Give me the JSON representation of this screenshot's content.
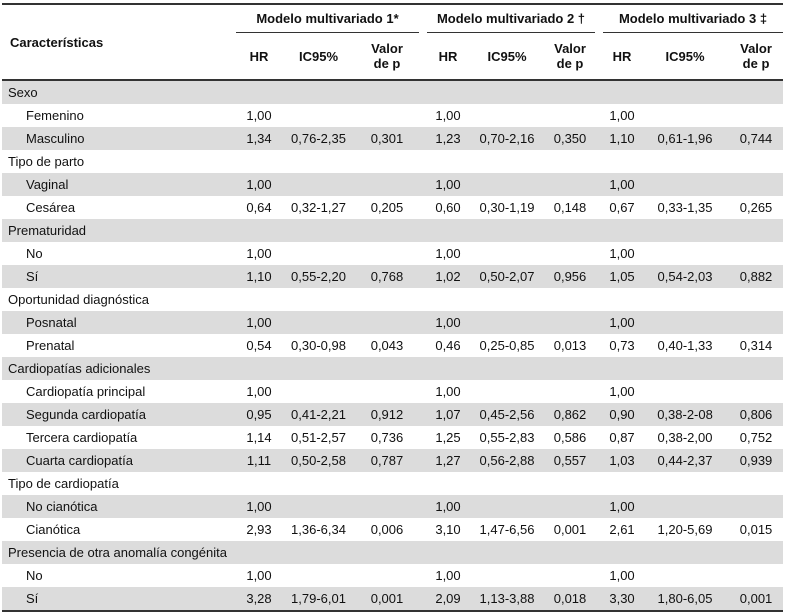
{
  "headers": {
    "characteristics": "Características",
    "groups": [
      "Modelo multivariado 1*",
      "Modelo multivariado 2 †",
      "Modelo multivariado 3 ‡"
    ],
    "hr": "HR",
    "ic": "IC95%",
    "p_line1": "Valor",
    "p_line2": "de p"
  },
  "rows": [
    {
      "type": "cat",
      "shade": true,
      "label": "Sexo"
    },
    {
      "type": "sub",
      "shade": false,
      "label": "Femenino",
      "m1": [
        "1,00",
        "",
        ""
      ],
      "m2": [
        "1,00",
        "",
        ""
      ],
      "m3": [
        "1,00",
        "",
        ""
      ]
    },
    {
      "type": "sub",
      "shade": true,
      "label": "Masculino",
      "m1": [
        "1,34",
        "0,76-2,35",
        "0,301"
      ],
      "m2": [
        "1,23",
        "0,70-2,16",
        "0,350"
      ],
      "m3": [
        "1,10",
        "0,61-1,96",
        "0,744"
      ]
    },
    {
      "type": "cat",
      "shade": false,
      "label": "Tipo de parto"
    },
    {
      "type": "sub",
      "shade": true,
      "label": "Vaginal",
      "m1": [
        "1,00",
        "",
        ""
      ],
      "m2": [
        "1,00",
        "",
        ""
      ],
      "m3": [
        "1,00",
        "",
        ""
      ]
    },
    {
      "type": "sub",
      "shade": false,
      "label": "Cesárea",
      "m1": [
        "0,64",
        "0,32-1,27",
        "0,205"
      ],
      "m2": [
        "0,60",
        "0,30-1,19",
        "0,148"
      ],
      "m3": [
        "0,67",
        "0,33-1,35",
        "0,265"
      ]
    },
    {
      "type": "cat",
      "shade": true,
      "label": "Prematuridad"
    },
    {
      "type": "sub",
      "shade": false,
      "label": "No",
      "m1": [
        "1,00",
        "",
        ""
      ],
      "m2": [
        "1,00",
        "",
        ""
      ],
      "m3": [
        "1,00",
        "",
        ""
      ]
    },
    {
      "type": "sub",
      "shade": true,
      "label": "Sí",
      "m1": [
        "1,10",
        "0,55-2,20",
        "0,768"
      ],
      "m2": [
        "1,02",
        "0,50-2,07",
        "0,956"
      ],
      "m3": [
        "1,05",
        "0,54-2,03",
        "0,882"
      ]
    },
    {
      "type": "cat",
      "shade": false,
      "label": "Oportunidad diagnóstica"
    },
    {
      "type": "sub",
      "shade": true,
      "label": "Posnatal",
      "m1": [
        "1,00",
        "",
        ""
      ],
      "m2": [
        "1,00",
        "",
        ""
      ],
      "m3": [
        "1,00",
        "",
        ""
      ]
    },
    {
      "type": "sub",
      "shade": false,
      "label": "Prenatal",
      "m1": [
        "0,54",
        "0,30-0,98",
        "0,043"
      ],
      "m2": [
        "0,46",
        "0,25-0,85",
        "0,013"
      ],
      "m3": [
        "0,73",
        "0,40-1,33",
        "0,314"
      ]
    },
    {
      "type": "cat",
      "shade": true,
      "label": "Cardiopatías adicionales"
    },
    {
      "type": "sub",
      "shade": false,
      "label": "Cardiopatía principal",
      "m1": [
        "1,00",
        "",
        ""
      ],
      "m2": [
        "1,00",
        "",
        ""
      ],
      "m3": [
        "1,00",
        "",
        ""
      ]
    },
    {
      "type": "sub",
      "shade": true,
      "label": "Segunda cardiopatía",
      "m1": [
        "0,95",
        "0,41-2,21",
        "0,912"
      ],
      "m2": [
        "1,07",
        "0,45-2,56",
        "0,862"
      ],
      "m3": [
        "0,90",
        "0,38-2-08",
        "0,806"
      ]
    },
    {
      "type": "sub",
      "shade": false,
      "label": "Tercera cardiopatía",
      "m1": [
        "1,14",
        "0,51-2,57",
        "0,736"
      ],
      "m2": [
        "1,25",
        "0,55-2,83",
        "0,586"
      ],
      "m3": [
        "0,87",
        "0,38-2,00",
        "0,752"
      ]
    },
    {
      "type": "sub",
      "shade": true,
      "label": "Cuarta cardiopatía",
      "m1": [
        "1,11",
        "0,50-2,58",
        "0,787"
      ],
      "m2": [
        "1,27",
        "0,56-2,88",
        "0,557"
      ],
      "m3": [
        "1,03",
        "0,44-2,37",
        "0,939"
      ]
    },
    {
      "type": "cat",
      "shade": false,
      "label": "Tipo de cardiopatía"
    },
    {
      "type": "sub",
      "shade": true,
      "label": "No cianótica",
      "m1": [
        "1,00",
        "",
        ""
      ],
      "m2": [
        "1,00",
        "",
        ""
      ],
      "m3": [
        "1,00",
        "",
        ""
      ]
    },
    {
      "type": "sub",
      "shade": false,
      "label": "Cianótica",
      "m1": [
        "2,93",
        "1,36-6,34",
        "0,006"
      ],
      "m2": [
        "3,10",
        "1,47-6,56",
        "0,001"
      ],
      "m3": [
        "2,61",
        "1,20-5,69",
        "0,015"
      ]
    },
    {
      "type": "cat",
      "shade": true,
      "label": "Presencia de otra anomalía congénita"
    },
    {
      "type": "sub",
      "shade": false,
      "label": "No",
      "m1": [
        "1,00",
        "",
        ""
      ],
      "m2": [
        "1,00",
        "",
        ""
      ],
      "m3": [
        "1,00",
        "",
        ""
      ]
    },
    {
      "type": "sub",
      "shade": true,
      "label": "Sí",
      "m1": [
        "3,28",
        "1,79-6,01",
        "0,001"
      ],
      "m2": [
        "2,09",
        "1,13-3,88",
        "0,018"
      ],
      "m3": [
        "3,30",
        "1,80-6,05",
        "0,001"
      ]
    }
  ]
}
